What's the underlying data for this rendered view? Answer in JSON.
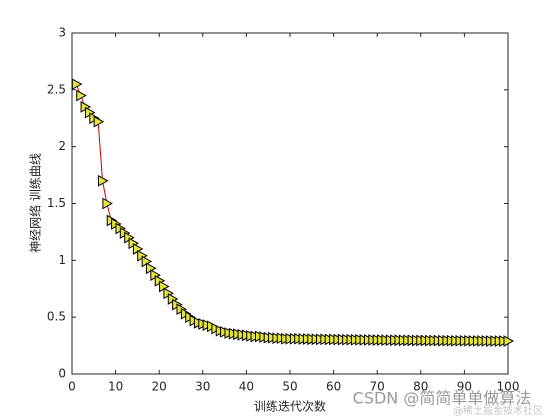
{
  "chart_data": {
    "type": "line",
    "xlabel": "训练迭代次数",
    "ylabel": "神经网络 训练曲线",
    "x": [
      1,
      2,
      3,
      4,
      5,
      6,
      7,
      8,
      9,
      10,
      11,
      12,
      13,
      14,
      15,
      16,
      17,
      18,
      19,
      20,
      21,
      22,
      23,
      24,
      25,
      26,
      27,
      28,
      29,
      30,
      31,
      32,
      33,
      34,
      35,
      36,
      37,
      38,
      39,
      40,
      41,
      42,
      43,
      44,
      45,
      46,
      47,
      48,
      49,
      50,
      51,
      52,
      53,
      54,
      55,
      56,
      57,
      58,
      59,
      60,
      61,
      62,
      63,
      64,
      65,
      66,
      67,
      68,
      69,
      70,
      71,
      72,
      73,
      74,
      75,
      76,
      77,
      78,
      79,
      80,
      81,
      82,
      83,
      84,
      85,
      86,
      87,
      88,
      89,
      90,
      91,
      92,
      93,
      94,
      95,
      96,
      97,
      98,
      99,
      100
    ],
    "series": [
      {
        "color": "#d00000",
        "marker_color": "#e4e43c",
        "values": [
          2.55,
          2.45,
          2.35,
          2.3,
          2.25,
          2.22,
          1.7,
          1.5,
          1.35,
          1.32,
          1.28,
          1.24,
          1.2,
          1.15,
          1.1,
          1.04,
          0.99,
          0.93,
          0.87,
          0.82,
          0.77,
          0.71,
          0.66,
          0.61,
          0.57,
          0.53,
          0.5,
          0.47,
          0.45,
          0.44,
          0.43,
          0.42,
          0.4,
          0.38,
          0.37,
          0.36,
          0.355,
          0.35,
          0.345,
          0.34,
          0.335,
          0.33,
          0.33,
          0.325,
          0.32,
          0.32,
          0.315,
          0.315,
          0.31,
          0.31,
          0.31,
          0.31,
          0.308,
          0.308,
          0.306,
          0.306,
          0.305,
          0.305,
          0.304,
          0.304,
          0.303,
          0.303,
          0.302,
          0.302,
          0.301,
          0.301,
          0.3,
          0.3,
          0.3,
          0.299,
          0.299,
          0.298,
          0.298,
          0.297,
          0.297,
          0.296,
          0.296,
          0.296,
          0.295,
          0.295,
          0.295,
          0.294,
          0.294,
          0.294,
          0.293,
          0.293,
          0.293,
          0.292,
          0.292,
          0.292,
          0.292,
          0.291,
          0.291,
          0.291,
          0.291,
          0.29,
          0.29,
          0.29,
          0.29,
          0.29
        ]
      }
    ],
    "xlim": [
      0,
      100
    ],
    "xticks": [
      0,
      10,
      20,
      30,
      40,
      50,
      60,
      70,
      80,
      90,
      100
    ],
    "ylim": [
      0,
      3
    ],
    "yticks": [
      0,
      0.5,
      1,
      1.5,
      2,
      2.5,
      3
    ],
    "grid": false,
    "watermark": "CSDN @简简单单做算法",
    "watermark2": "@稀土掘金技术社区"
  }
}
